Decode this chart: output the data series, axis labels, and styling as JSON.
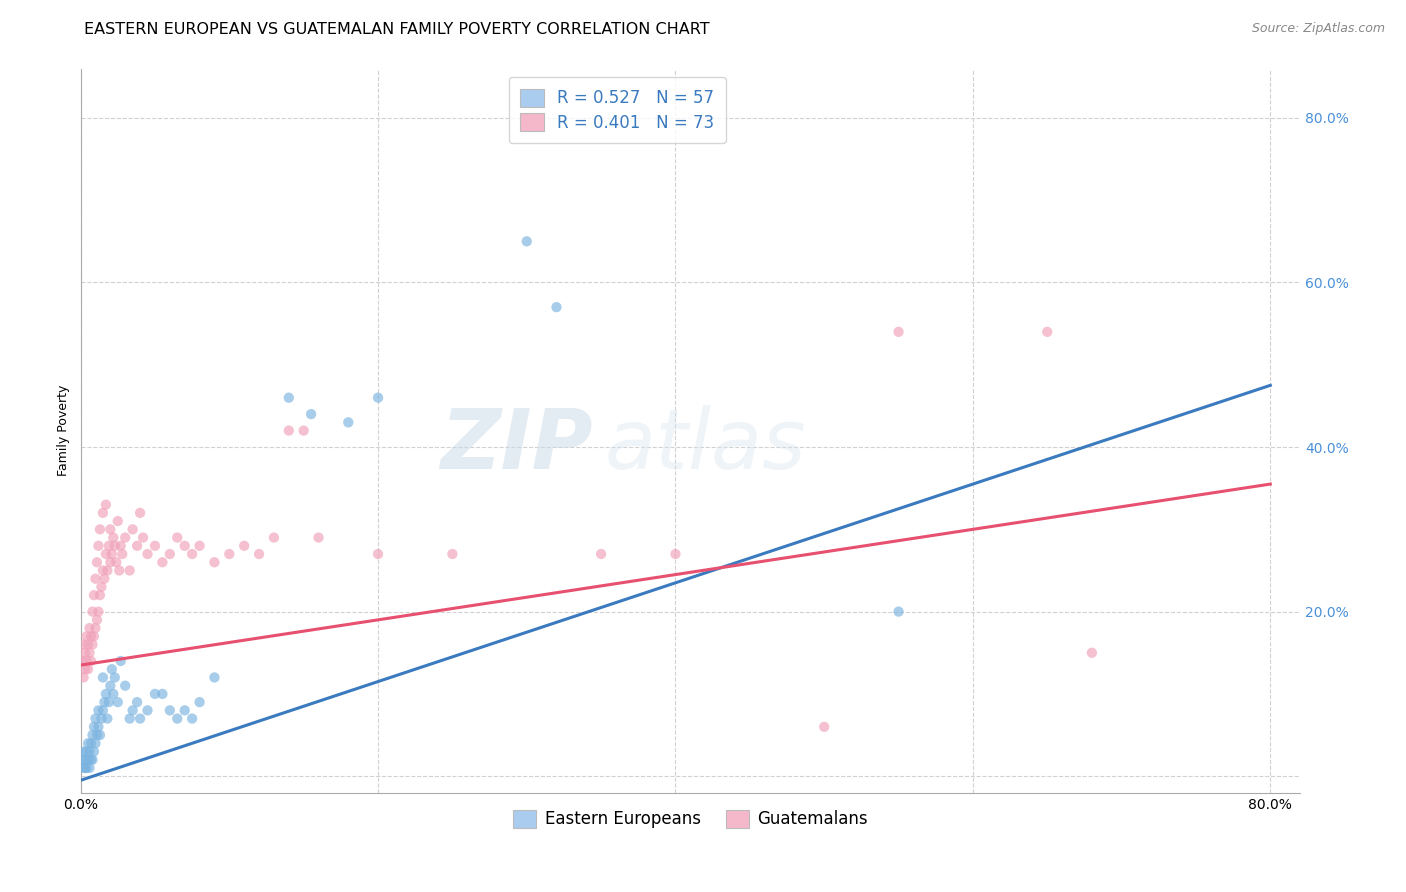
{
  "title": "EASTERN EUROPEAN VS GUATEMALAN FAMILY POVERTY CORRELATION CHART",
  "source": "Source: ZipAtlas.com",
  "ylabel": "Family Poverty",
  "watermark": "ZIPatlas",
  "blue_scatter": [
    [
      0.001,
      0.02
    ],
    [
      0.002,
      0.01
    ],
    [
      0.002,
      0.03
    ],
    [
      0.003,
      0.01
    ],
    [
      0.003,
      0.02
    ],
    [
      0.004,
      0.01
    ],
    [
      0.004,
      0.03
    ],
    [
      0.005,
      0.02
    ],
    [
      0.005,
      0.04
    ],
    [
      0.006,
      0.01
    ],
    [
      0.006,
      0.03
    ],
    [
      0.007,
      0.02
    ],
    [
      0.007,
      0.04
    ],
    [
      0.008,
      0.02
    ],
    [
      0.008,
      0.05
    ],
    [
      0.009,
      0.03
    ],
    [
      0.009,
      0.06
    ],
    [
      0.01,
      0.04
    ],
    [
      0.01,
      0.07
    ],
    [
      0.011,
      0.05
    ],
    [
      0.012,
      0.06
    ],
    [
      0.012,
      0.08
    ],
    [
      0.013,
      0.05
    ],
    [
      0.014,
      0.07
    ],
    [
      0.015,
      0.08
    ],
    [
      0.015,
      0.12
    ],
    [
      0.016,
      0.09
    ],
    [
      0.017,
      0.1
    ],
    [
      0.018,
      0.07
    ],
    [
      0.019,
      0.09
    ],
    [
      0.02,
      0.11
    ],
    [
      0.021,
      0.13
    ],
    [
      0.022,
      0.1
    ],
    [
      0.023,
      0.12
    ],
    [
      0.025,
      0.09
    ],
    [
      0.027,
      0.14
    ],
    [
      0.03,
      0.11
    ],
    [
      0.033,
      0.07
    ],
    [
      0.035,
      0.08
    ],
    [
      0.038,
      0.09
    ],
    [
      0.04,
      0.07
    ],
    [
      0.045,
      0.08
    ],
    [
      0.05,
      0.1
    ],
    [
      0.055,
      0.1
    ],
    [
      0.06,
      0.08
    ],
    [
      0.065,
      0.07
    ],
    [
      0.07,
      0.08
    ],
    [
      0.075,
      0.07
    ],
    [
      0.08,
      0.09
    ],
    [
      0.09,
      0.12
    ],
    [
      0.14,
      0.46
    ],
    [
      0.155,
      0.44
    ],
    [
      0.18,
      0.43
    ],
    [
      0.2,
      0.46
    ],
    [
      0.3,
      0.65
    ],
    [
      0.32,
      0.57
    ],
    [
      0.55,
      0.2
    ]
  ],
  "pink_scatter": [
    [
      0.001,
      0.14
    ],
    [
      0.002,
      0.12
    ],
    [
      0.002,
      0.16
    ],
    [
      0.003,
      0.13
    ],
    [
      0.003,
      0.15
    ],
    [
      0.004,
      0.14
    ],
    [
      0.004,
      0.17
    ],
    [
      0.005,
      0.13
    ],
    [
      0.005,
      0.16
    ],
    [
      0.006,
      0.15
    ],
    [
      0.006,
      0.18
    ],
    [
      0.007,
      0.14
    ],
    [
      0.007,
      0.17
    ],
    [
      0.008,
      0.16
    ],
    [
      0.008,
      0.2
    ],
    [
      0.009,
      0.17
    ],
    [
      0.009,
      0.22
    ],
    [
      0.01,
      0.18
    ],
    [
      0.01,
      0.24
    ],
    [
      0.011,
      0.19
    ],
    [
      0.011,
      0.26
    ],
    [
      0.012,
      0.2
    ],
    [
      0.012,
      0.28
    ],
    [
      0.013,
      0.22
    ],
    [
      0.013,
      0.3
    ],
    [
      0.014,
      0.23
    ],
    [
      0.015,
      0.25
    ],
    [
      0.015,
      0.32
    ],
    [
      0.016,
      0.24
    ],
    [
      0.017,
      0.27
    ],
    [
      0.017,
      0.33
    ],
    [
      0.018,
      0.25
    ],
    [
      0.019,
      0.28
    ],
    [
      0.02,
      0.26
    ],
    [
      0.02,
      0.3
    ],
    [
      0.021,
      0.27
    ],
    [
      0.022,
      0.29
    ],
    [
      0.023,
      0.28
    ],
    [
      0.024,
      0.26
    ],
    [
      0.025,
      0.31
    ],
    [
      0.026,
      0.25
    ],
    [
      0.027,
      0.28
    ],
    [
      0.028,
      0.27
    ],
    [
      0.03,
      0.29
    ],
    [
      0.033,
      0.25
    ],
    [
      0.035,
      0.3
    ],
    [
      0.038,
      0.28
    ],
    [
      0.04,
      0.32
    ],
    [
      0.042,
      0.29
    ],
    [
      0.045,
      0.27
    ],
    [
      0.05,
      0.28
    ],
    [
      0.055,
      0.26
    ],
    [
      0.06,
      0.27
    ],
    [
      0.065,
      0.29
    ],
    [
      0.07,
      0.28
    ],
    [
      0.075,
      0.27
    ],
    [
      0.08,
      0.28
    ],
    [
      0.09,
      0.26
    ],
    [
      0.1,
      0.27
    ],
    [
      0.11,
      0.28
    ],
    [
      0.12,
      0.27
    ],
    [
      0.13,
      0.29
    ],
    [
      0.14,
      0.42
    ],
    [
      0.15,
      0.42
    ],
    [
      0.16,
      0.29
    ],
    [
      0.2,
      0.27
    ],
    [
      0.25,
      0.27
    ],
    [
      0.35,
      0.27
    ],
    [
      0.4,
      0.27
    ],
    [
      0.5,
      0.06
    ],
    [
      0.55,
      0.54
    ],
    [
      0.65,
      0.54
    ],
    [
      0.68,
      0.15
    ]
  ],
  "blue_line_x": [
    0.0,
    0.8
  ],
  "blue_line_y": [
    -0.005,
    0.475
  ],
  "pink_line_x": [
    0.0,
    0.8
  ],
  "pink_line_y": [
    0.135,
    0.355
  ],
  "blue_line_color": "#3a7abf",
  "pink_line_color": "#e85070",
  "blue_scatter_color": "#7ab3e0",
  "pink_scatter_color": "#f0a0b8",
  "blue_legend_color": "#aaccee",
  "pink_legend_color": "#f4b8ca",
  "xlim": [
    0.0,
    0.82
  ],
  "ylim": [
    -0.02,
    0.86
  ],
  "xticks": [
    0.0,
    0.2,
    0.4,
    0.6,
    0.8
  ],
  "xtick_labels_show": [
    "0.0%",
    "80.0%"
  ],
  "yticks": [
    0.0,
    0.2,
    0.4,
    0.6,
    0.8
  ],
  "right_ytick_labels": [
    "",
    "20.0%",
    "40.0%",
    "60.0%",
    "80.0%"
  ],
  "right_tick_color": "#4a90d9",
  "grid_color": "#cccccc",
  "background_color": "#ffffff",
  "title_fontsize": 11.5,
  "source_fontsize": 9,
  "axis_label_fontsize": 9,
  "tick_fontsize": 10,
  "legend_fontsize": 12,
  "scatter_size": 55,
  "scatter_alpha": 0.65,
  "line_width": 2.2
}
